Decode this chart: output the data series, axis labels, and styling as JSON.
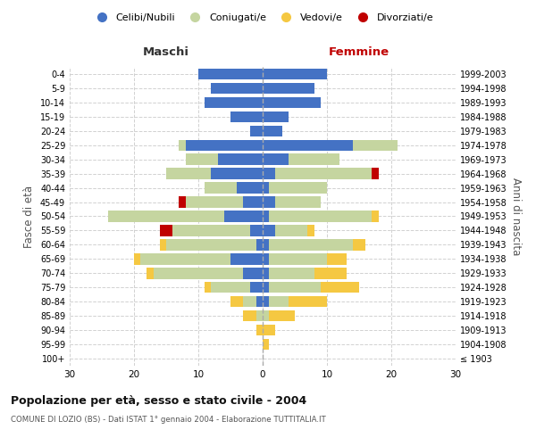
{
  "age_groups": [
    "100+",
    "95-99",
    "90-94",
    "85-89",
    "80-84",
    "75-79",
    "70-74",
    "65-69",
    "60-64",
    "55-59",
    "50-54",
    "45-49",
    "40-44",
    "35-39",
    "30-34",
    "25-29",
    "20-24",
    "15-19",
    "10-14",
    "5-9",
    "0-4"
  ],
  "birth_years": [
    "≤ 1903",
    "1904-1908",
    "1909-1913",
    "1914-1918",
    "1919-1923",
    "1924-1928",
    "1929-1933",
    "1934-1938",
    "1939-1943",
    "1944-1948",
    "1949-1953",
    "1954-1958",
    "1959-1963",
    "1964-1968",
    "1969-1973",
    "1974-1978",
    "1979-1983",
    "1984-1988",
    "1989-1993",
    "1994-1998",
    "1999-2003"
  ],
  "males": {
    "celibi": [
      0,
      0,
      0,
      0,
      1,
      2,
      3,
      5,
      1,
      2,
      6,
      3,
      4,
      8,
      7,
      12,
      2,
      5,
      9,
      8,
      10
    ],
    "coniugati": [
      0,
      0,
      0,
      1,
      2,
      6,
      14,
      14,
      14,
      12,
      18,
      9,
      5,
      7,
      5,
      1,
      0,
      0,
      0,
      0,
      0
    ],
    "vedovi": [
      0,
      0,
      1,
      2,
      2,
      1,
      1,
      1,
      1,
      0,
      0,
      0,
      0,
      0,
      0,
      0,
      0,
      0,
      0,
      0,
      0
    ],
    "divorziati": [
      0,
      0,
      0,
      0,
      0,
      0,
      0,
      0,
      0,
      2,
      0,
      1,
      0,
      0,
      0,
      0,
      0,
      0,
      0,
      0,
      0
    ]
  },
  "females": {
    "nubili": [
      0,
      0,
      0,
      0,
      1,
      1,
      1,
      1,
      1,
      2,
      1,
      2,
      1,
      2,
      4,
      14,
      3,
      4,
      9,
      8,
      10
    ],
    "coniugate": [
      0,
      0,
      0,
      1,
      3,
      8,
      7,
      9,
      13,
      5,
      16,
      7,
      9,
      15,
      8,
      7,
      0,
      0,
      0,
      0,
      0
    ],
    "vedove": [
      0,
      1,
      2,
      4,
      6,
      6,
      5,
      3,
      2,
      1,
      1,
      0,
      0,
      0,
      0,
      0,
      0,
      0,
      0,
      0,
      0
    ],
    "divorziate": [
      0,
      0,
      0,
      0,
      0,
      0,
      0,
      0,
      0,
      0,
      0,
      0,
      0,
      1,
      0,
      0,
      0,
      0,
      0,
      0,
      0
    ]
  },
  "colors": {
    "celibi": "#4472C4",
    "coniugati": "#C5D5A0",
    "vedovi": "#F5C842",
    "divorziati": "#C00000"
  },
  "title": "Popolazione per età, sesso e stato civile - 2004",
  "subtitle": "COMUNE DI LOZIO (BS) - Dati ISTAT 1° gennaio 2004 - Elaborazione TUTTITALIA.IT",
  "xlabel_left": "Maschi",
  "xlabel_right": "Femmine",
  "ylabel_left": "Fasce di età",
  "ylabel_right": "Anni di nascita",
  "xlim": 30,
  "bg_color": "#FFFFFF",
  "grid_color": "#CCCCCC",
  "legend_labels": [
    "Celibi/Nubili",
    "Coniugati/e",
    "Vedovi/e",
    "Divorziati/e"
  ]
}
